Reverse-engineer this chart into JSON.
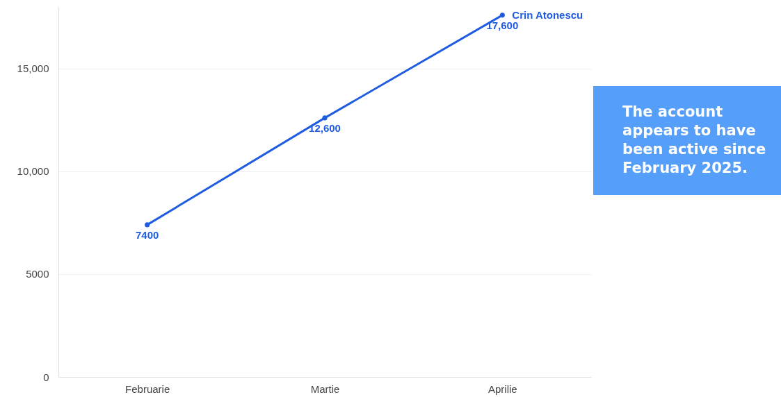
{
  "chart_data": {
    "type": "line",
    "categories": [
      "Februarie",
      "Martie",
      "Aprilie"
    ],
    "series": [
      {
        "name": "Crin Atonescu",
        "color": "#1f5ce0",
        "values": [
          7400,
          12600,
          17600
        ],
        "value_labels": [
          "7400",
          "12,600",
          "17,600"
        ]
      }
    ],
    "ylim": [
      0,
      18000
    ],
    "yticks": [
      0,
      5000,
      {
        "value": 10000,
        "label": "10,000"
      },
      {
        "value": 15000,
        "label": "15,000"
      }
    ],
    "grid": "y",
    "marker": "circle",
    "annotations": [
      "The account appears to have been active since February 2025."
    ]
  }
}
